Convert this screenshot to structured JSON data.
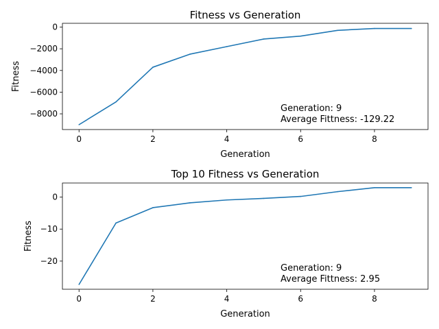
{
  "chart_data": [
    {
      "type": "line",
      "title": "Fitness vs Generation",
      "xlabel": "Generation",
      "ylabel": "Fitness",
      "xlim": [
        -0.45,
        9.45
      ],
      "ylim": [
        -9450,
        350
      ],
      "xticks": [
        0,
        2,
        4,
        6,
        8
      ],
      "xtick_labels": [
        "0",
        "2",
        "4",
        "6",
        "8"
      ],
      "yticks": [
        -8000,
        -6000,
        -4000,
        -2000,
        0
      ],
      "ytick_labels": [
        "−8000",
        "−6000",
        "−4000",
        "−2000",
        "0"
      ],
      "grid": false,
      "color": "#1f77b4",
      "x": [
        0,
        1,
        2,
        3,
        4,
        5,
        6,
        7,
        8,
        9
      ],
      "y": [
        -9000,
        -6900,
        -3700,
        -2500,
        -1800,
        -1100,
        -830,
        -300,
        -130,
        -129
      ],
      "annotation": [
        "Generation: 9",
        "Average Fittness: -129.22"
      ]
    },
    {
      "type": "line",
      "title": "Top 10 Fitness vs Generation",
      "xlabel": "Generation",
      "ylabel": "Fitness",
      "xlim": [
        -0.45,
        9.45
      ],
      "ylim": [
        -28.8,
        4.4
      ],
      "xticks": [
        0,
        2,
        4,
        6,
        8
      ],
      "xtick_labels": [
        "0",
        "2",
        "4",
        "6",
        "8"
      ],
      "yticks": [
        -20,
        -10,
        0
      ],
      "ytick_labels": [
        "−20",
        "−10",
        "0"
      ],
      "grid": false,
      "color": "#1f77b4",
      "x": [
        0,
        1,
        2,
        3,
        4,
        5,
        6,
        7,
        8,
        9
      ],
      "y": [
        -27.3,
        -8.1,
        -3.3,
        -1.8,
        -0.9,
        -0.4,
        0.2,
        1.7,
        2.95,
        2.95
      ],
      "annotation": [
        "Generation: 9",
        "Average Fittness: 2.95"
      ]
    }
  ]
}
